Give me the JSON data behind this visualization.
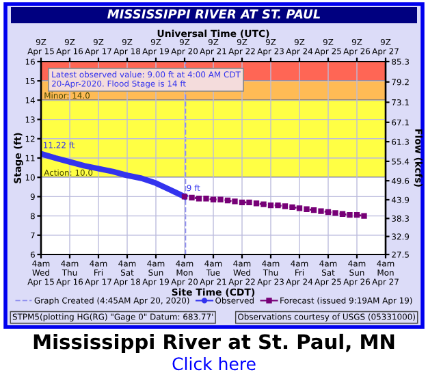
{
  "chart_data": {
    "type": "line",
    "title": "MISSISSIPPI RIVER AT ST. PAUL",
    "subtitle": "Mississippi River at St. Paul, MN",
    "x2label": "Universal Time (UTC)",
    "xlabel": "Site Time (CDT)",
    "ylabel": "Stage (ft)",
    "y2label": "Flow (kcfs)",
    "xlim": [
      "2020-04-15T04:00",
      "2020-04-27T04:00"
    ],
    "xticks": [
      {
        "value": "2020-04-15T04:00",
        "label": "4am\nWed\nApr 15"
      },
      {
        "value": "2020-04-16T04:00",
        "label": "4am\nThu\nApr 16"
      },
      {
        "value": "2020-04-17T04:00",
        "label": "4am\nFri\nApr 17"
      },
      {
        "value": "2020-04-18T04:00",
        "label": "4am\nSat\nApr 18"
      },
      {
        "value": "2020-04-19T04:00",
        "label": "4am\nSun\nApr 19"
      },
      {
        "value": "2020-04-20T04:00",
        "label": "4am\nMon\nApr 20"
      },
      {
        "value": "2020-04-21T04:00",
        "label": "4am\nTue\nApr 21"
      },
      {
        "value": "2020-04-22T04:00",
        "label": "4am\nWed\nApr 22"
      },
      {
        "value": "2020-04-23T04:00",
        "label": "4am\nThu\nApr 23"
      },
      {
        "value": "2020-04-24T04:00",
        "label": "4am\nFri\nApr 24"
      },
      {
        "value": "2020-04-25T04:00",
        "label": "4am\nSat\nApr 25"
      },
      {
        "value": "2020-04-26T04:00",
        "label": "4am\nSun\nApr 26"
      },
      {
        "value": "2020-04-27T04:00",
        "label": "4am\nMon\nApr 27"
      }
    ],
    "x2lim": [
      "2020-04-15T04:00",
      "2020-04-27T04:00"
    ],
    "x2ticks": [
      {
        "value": "2020-04-15T04:00",
        "label": "9Z\nApr 15"
      },
      {
        "value": "2020-04-16T04:00",
        "label": "9Z\nApr 16"
      },
      {
        "value": "2020-04-17T04:00",
        "label": "9Z\nApr 17"
      },
      {
        "value": "2020-04-18T04:00",
        "label": "9Z\nApr 18"
      },
      {
        "value": "2020-04-19T04:00",
        "label": "9Z\nApr 19"
      },
      {
        "value": "2020-04-20T04:00",
        "label": "9Z\nApr 20"
      },
      {
        "value": "2020-04-21T04:00",
        "label": "9Z\nApr 21"
      },
      {
        "value": "2020-04-22T04:00",
        "label": "9Z\nApr 22"
      },
      {
        "value": "2020-04-23T04:00",
        "label": "9Z\nApr 23"
      },
      {
        "value": "2020-04-24T04:00",
        "label": "9Z\nApr 24"
      },
      {
        "value": "2020-04-25T04:00",
        "label": "9Z\nApr 25"
      },
      {
        "value": "2020-04-26T04:00",
        "label": "9Z\nApr 26"
      },
      {
        "value": "2020-04-27T04:00",
        "label": "9Z\nApr 27"
      }
    ],
    "ylim": [
      6,
      16
    ],
    "yticks": [
      6,
      7,
      8,
      9,
      10,
      11,
      12,
      13,
      14,
      15,
      16
    ],
    "y2lim": [
      27.5,
      85.3
    ],
    "y2ticks": [
      27.5,
      32.9,
      38.3,
      43.9,
      49.6,
      55.4,
      61.3,
      67.1,
      73.1,
      79.2,
      85.3
    ],
    "grid": true,
    "legend": "bottom",
    "bands": [
      {
        "axis": "y",
        "from": 10,
        "to": 14,
        "label": "Action: 10.0",
        "color": "#ffff44"
      },
      {
        "axis": "y",
        "from": 14,
        "to": 15,
        "label": "Minor: 14.0",
        "color": "#ffbb55"
      },
      {
        "axis": "y",
        "from": 15,
        "to": 16,
        "label": null,
        "color": "#ff6655"
      }
    ],
    "ref_lines": [
      {
        "axis": "x",
        "value": "2020-04-20T04:45",
        "label": "Graph Created (4:45AM Apr 20, 2020)",
        "color": "#8888ee",
        "line_style": "dashed"
      }
    ],
    "series": [
      {
        "name": "Observed",
        "color": "#3333ee",
        "marker": "none",
        "line_style": "solid",
        "x": [
          "2020-04-15T04:00",
          "2020-04-15T16:00",
          "2020-04-16T04:00",
          "2020-04-16T16:00",
          "2020-04-17T04:00",
          "2020-04-17T16:00",
          "2020-04-18T04:00",
          "2020-04-18T16:00",
          "2020-04-19T04:00",
          "2020-04-19T16:00",
          "2020-04-20T04:00"
        ],
        "values": [
          11.22,
          11.0,
          10.8,
          10.6,
          10.45,
          10.3,
          10.1,
          9.95,
          9.7,
          9.35,
          9.0
        ]
      },
      {
        "name": "Forecast (issued 9:19AM Apr 19)",
        "color": "#770077",
        "marker": "square",
        "line_style": "dotted",
        "x": [
          "2020-04-20T04:00",
          "2020-04-20T10:00",
          "2020-04-20T16:00",
          "2020-04-20T22:00",
          "2020-04-21T04:00",
          "2020-04-21T10:00",
          "2020-04-21T16:00",
          "2020-04-21T22:00",
          "2020-04-22T04:00",
          "2020-04-22T10:00",
          "2020-04-22T16:00",
          "2020-04-22T22:00",
          "2020-04-23T04:00",
          "2020-04-23T10:00",
          "2020-04-23T16:00",
          "2020-04-23T22:00",
          "2020-04-24T04:00",
          "2020-04-24T10:00",
          "2020-04-24T16:00",
          "2020-04-24T22:00",
          "2020-04-25T04:00",
          "2020-04-25T10:00",
          "2020-04-25T16:00",
          "2020-04-25T22:00",
          "2020-04-26T04:00",
          "2020-04-26T10:00"
        ],
        "values": [
          9.0,
          8.95,
          8.9,
          8.9,
          8.85,
          8.85,
          8.8,
          8.75,
          8.7,
          8.7,
          8.65,
          8.6,
          8.55,
          8.55,
          8.5,
          8.45,
          8.4,
          8.35,
          8.3,
          8.25,
          8.2,
          8.15,
          8.1,
          8.05,
          8.05,
          8.0
        ]
      }
    ],
    "annotations": [
      {
        "text": "11.22 ft",
        "x": "2020-04-15T04:00",
        "y": 11.22
      },
      {
        "text": "9 ft",
        "x": "2020-04-20T04:00",
        "y": 9.0
      },
      "Latest observed value: 9.00 ft at 4:00 AM CDT\n20-Apr-2020. Flood Stage is 14 ft",
      "STPM5(plotting HG(RG) \"Gage 0\" Datum: 683.77'",
      "Observations courtesy of USGS (05331000)",
      "Click here"
    ]
  }
}
